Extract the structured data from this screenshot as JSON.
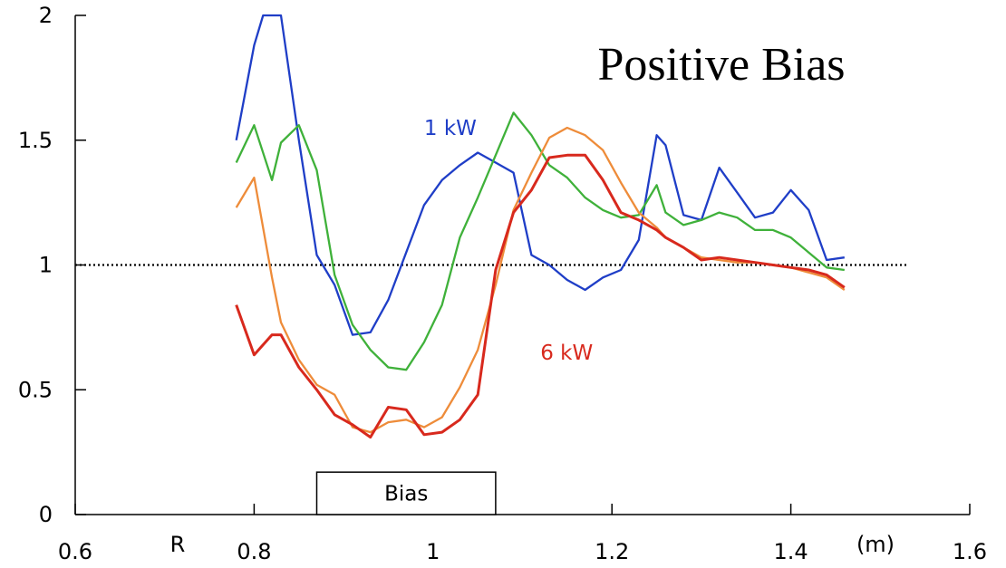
{
  "chart_data": {
    "type": "line",
    "title": "Positive Bias",
    "xlabel": "R",
    "x_unit": "(m)",
    "ylabel": "",
    "xlim": [
      0.6,
      1.6
    ],
    "ylim": [
      0,
      2
    ],
    "x_ticks": [
      "0.6",
      "0.8",
      "1",
      "1.2",
      "1.4",
      "1.6"
    ],
    "y_ticks": [
      "0",
      "0.5",
      "1",
      "1.5",
      "2"
    ],
    "grid": false,
    "reference_line": {
      "y": 1,
      "x_range": [
        0.6,
        1.53
      ],
      "style": "dotted"
    },
    "bias_box": {
      "label": "Bias",
      "x_range": [
        0.87,
        1.07
      ],
      "y_range": [
        0,
        0.17
      ]
    },
    "annotations": [
      {
        "text": "1 kW",
        "color": "#1f3ec7",
        "x": 0.99,
        "y": 1.52
      },
      {
        "text": "6 kW",
        "color": "#d8291d",
        "x": 1.12,
        "y": 0.62
      }
    ],
    "series": [
      {
        "color": "#1f3ec7",
        "x": [
          0.78,
          0.8,
          0.81,
          0.83,
          0.85,
          0.87,
          0.89,
          0.91,
          0.93,
          0.95,
          0.97,
          0.99,
          1.01,
          1.03,
          1.05,
          1.07,
          1.09,
          1.11,
          1.13,
          1.15,
          1.17,
          1.19,
          1.21,
          1.23,
          1.25,
          1.26,
          1.28,
          1.3,
          1.32,
          1.34,
          1.36,
          1.38,
          1.4,
          1.42,
          1.44,
          1.46
        ],
        "y": [
          1.5,
          1.88,
          2.0,
          2.0,
          1.5,
          1.04,
          0.92,
          0.72,
          0.73,
          0.86,
          1.05,
          1.24,
          1.34,
          1.4,
          1.45,
          1.41,
          1.37,
          1.04,
          1.0,
          0.94,
          0.9,
          0.95,
          0.98,
          1.1,
          1.52,
          1.48,
          1.2,
          1.18,
          1.39,
          1.29,
          1.19,
          1.21,
          1.3,
          1.22,
          1.02,
          1.03
        ]
      },
      {
        "color": "#3fb13a",
        "x": [
          0.78,
          0.8,
          0.82,
          0.83,
          0.85,
          0.87,
          0.89,
          0.91,
          0.93,
          0.95,
          0.97,
          0.99,
          1.01,
          1.03,
          1.05,
          1.07,
          1.09,
          1.11,
          1.13,
          1.15,
          1.17,
          1.19,
          1.21,
          1.23,
          1.25,
          1.26,
          1.28,
          1.3,
          1.32,
          1.34,
          1.36,
          1.38,
          1.4,
          1.42,
          1.44,
          1.46
        ],
        "y": [
          1.41,
          1.56,
          1.34,
          1.49,
          1.56,
          1.38,
          0.96,
          0.76,
          0.66,
          0.59,
          0.58,
          0.69,
          0.84,
          1.11,
          1.27,
          1.44,
          1.61,
          1.52,
          1.4,
          1.35,
          1.27,
          1.22,
          1.19,
          1.2,
          1.32,
          1.21,
          1.16,
          1.18,
          1.21,
          1.19,
          1.14,
          1.14,
          1.11,
          1.05,
          0.99,
          0.98
        ]
      },
      {
        "color": "#ee8c3a",
        "x": [
          0.78,
          0.8,
          0.82,
          0.83,
          0.85,
          0.87,
          0.89,
          0.91,
          0.93,
          0.95,
          0.97,
          0.99,
          1.01,
          1.03,
          1.05,
          1.07,
          1.09,
          1.11,
          1.13,
          1.15,
          1.17,
          1.19,
          1.21,
          1.23,
          1.25,
          1.26,
          1.28,
          1.3,
          1.32,
          1.34,
          1.36,
          1.38,
          1.4,
          1.42,
          1.44,
          1.46
        ],
        "y": [
          1.23,
          1.35,
          0.95,
          0.77,
          0.62,
          0.52,
          0.48,
          0.35,
          0.33,
          0.37,
          0.38,
          0.35,
          0.39,
          0.51,
          0.66,
          0.92,
          1.22,
          1.37,
          1.51,
          1.55,
          1.52,
          1.46,
          1.33,
          1.21,
          1.15,
          1.11,
          1.07,
          1.03,
          1.02,
          1.01,
          1.01,
          1.0,
          0.99,
          0.97,
          0.95,
          0.9
        ]
      },
      {
        "color": "#d8291d",
        "x": [
          0.78,
          0.8,
          0.82,
          0.83,
          0.85,
          0.87,
          0.89,
          0.91,
          0.93,
          0.95,
          0.97,
          0.99,
          1.01,
          1.03,
          1.05,
          1.07,
          1.09,
          1.11,
          1.13,
          1.15,
          1.17,
          1.19,
          1.21,
          1.23,
          1.25,
          1.26,
          1.28,
          1.3,
          1.32,
          1.34,
          1.36,
          1.38,
          1.4,
          1.42,
          1.44,
          1.46
        ],
        "y": [
          0.84,
          0.64,
          0.72,
          0.72,
          0.59,
          0.5,
          0.4,
          0.36,
          0.31,
          0.43,
          0.42,
          0.32,
          0.33,
          0.38,
          0.48,
          0.98,
          1.21,
          1.3,
          1.43,
          1.44,
          1.44,
          1.34,
          1.21,
          1.18,
          1.14,
          1.11,
          1.07,
          1.02,
          1.03,
          1.02,
          1.01,
          1.0,
          0.99,
          0.98,
          0.96,
          0.91
        ]
      }
    ]
  }
}
